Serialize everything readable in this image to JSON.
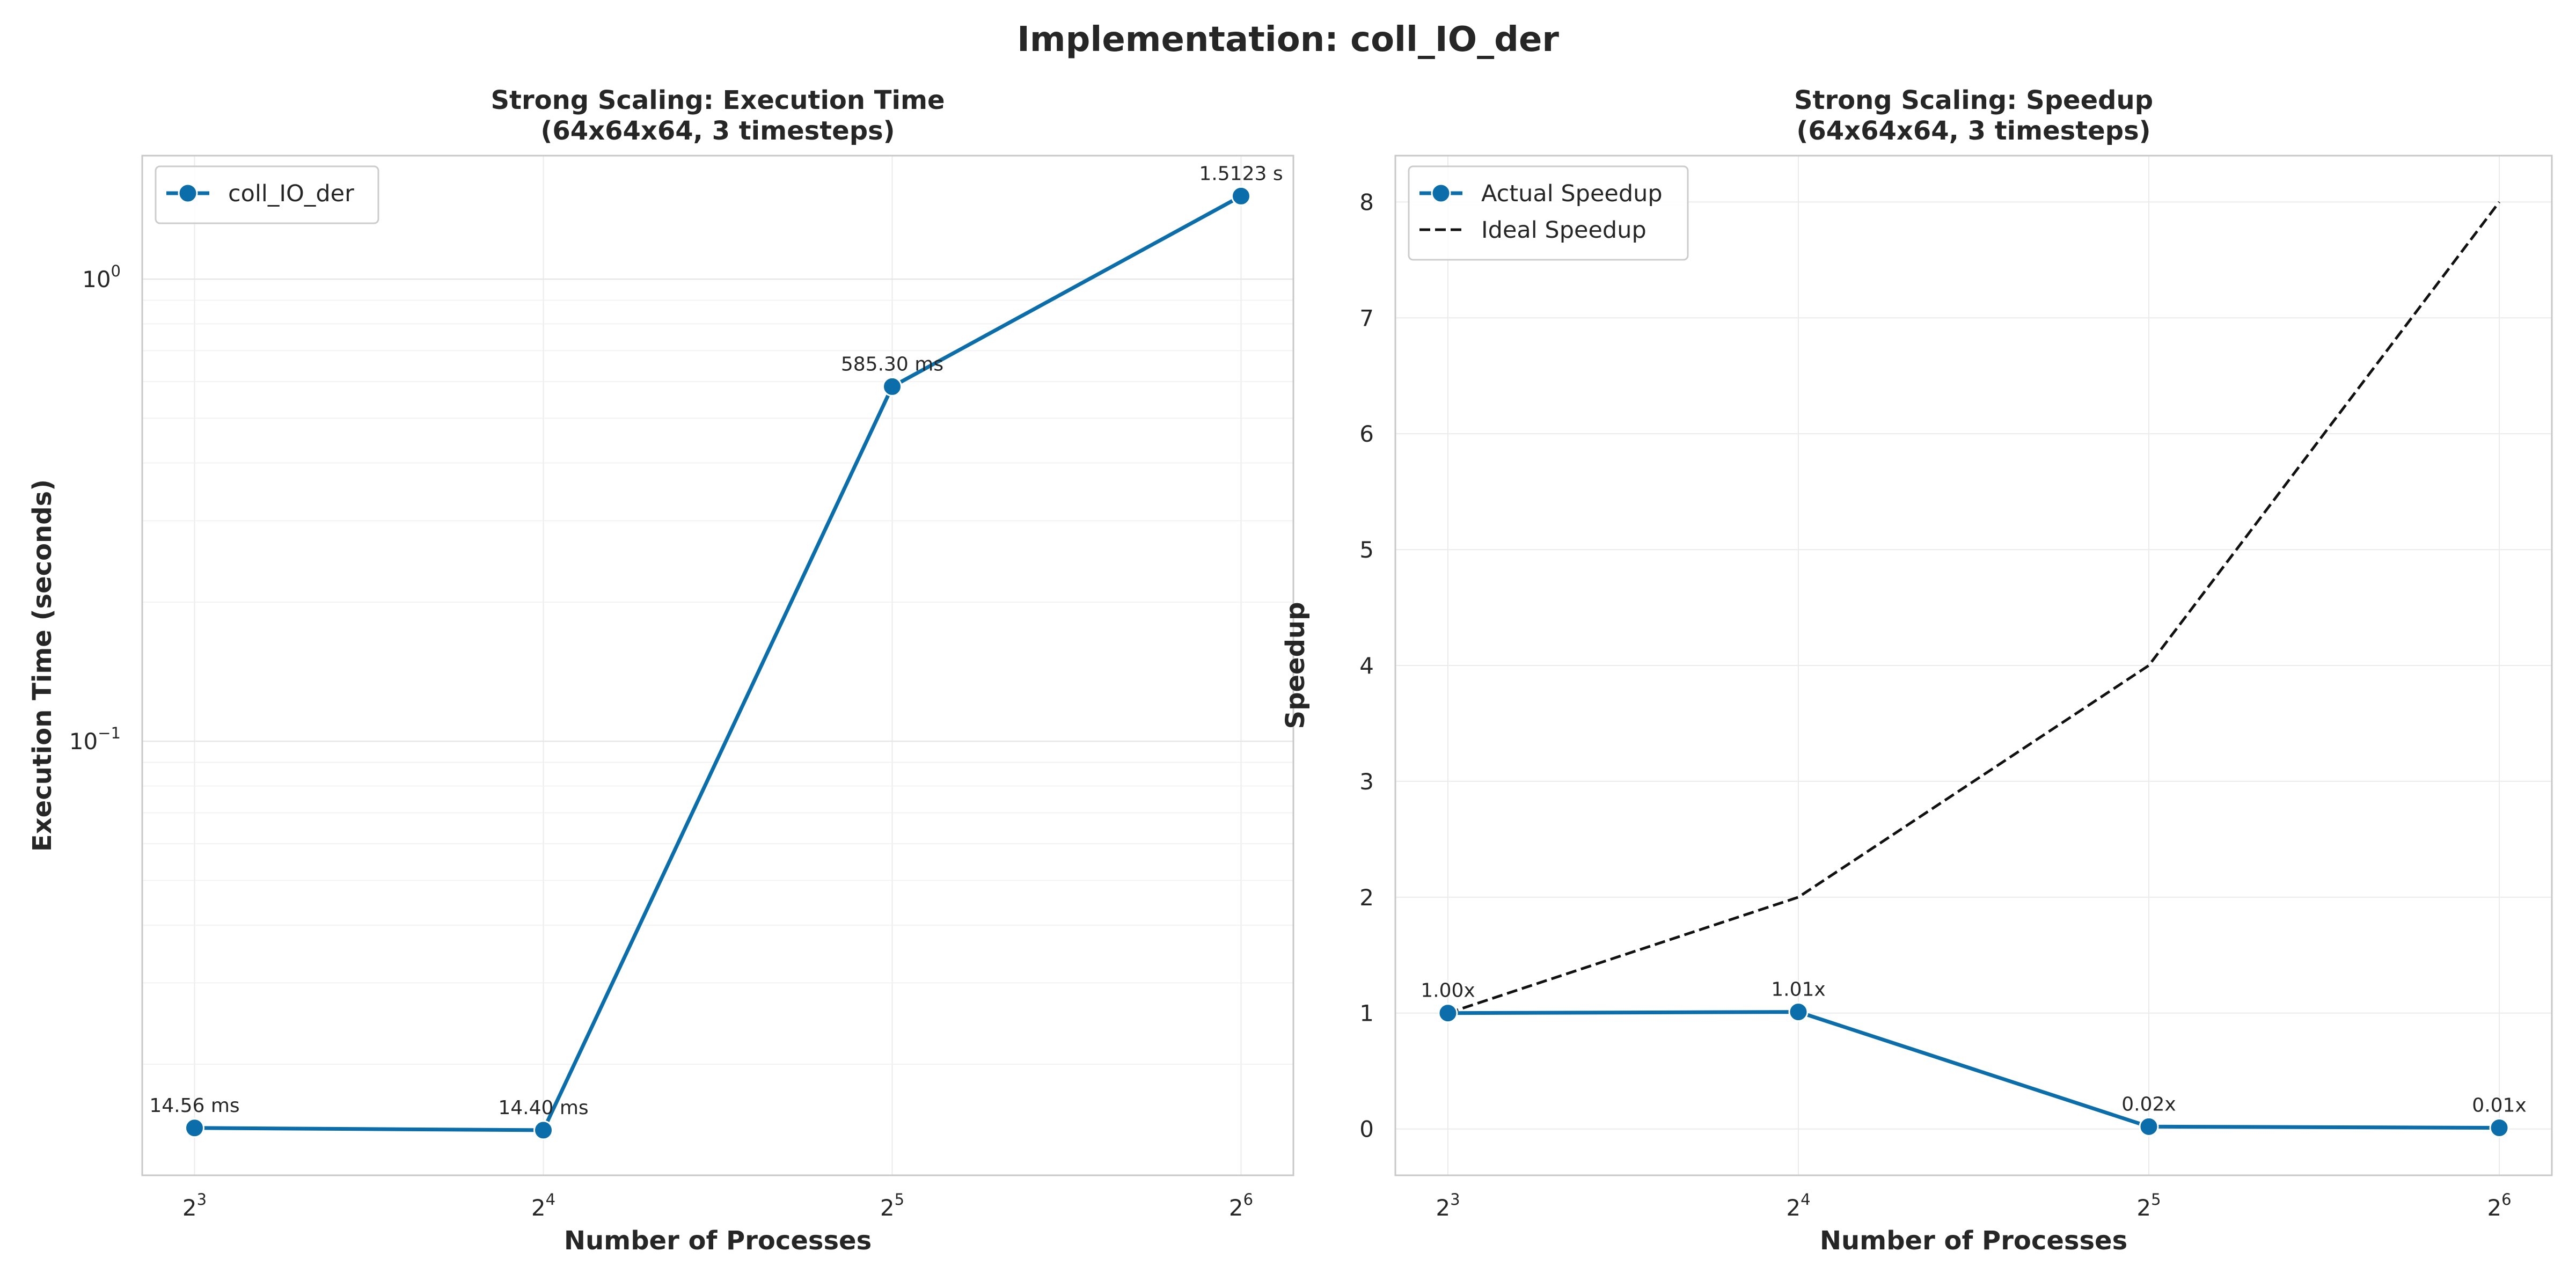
{
  "suptitle": "Implementation: coll_IO_der",
  "chart_data": [
    {
      "type": "line",
      "title_line1": "Strong Scaling: Execution Time",
      "title_line2": "(64x64x64, 3 timesteps)",
      "xlabel": "Number of Processes",
      "ylabel": "Execution Time (seconds)",
      "xscale": "log2",
      "yscale": "log10",
      "x": [
        8,
        16,
        32,
        64
      ],
      "x_ticks": [
        {
          "base": "2",
          "exp": "3"
        },
        {
          "base": "2",
          "exp": "4"
        },
        {
          "base": "2",
          "exp": "5"
        },
        {
          "base": "2",
          "exp": "6"
        }
      ],
      "y_ticks": [
        {
          "value": 0.1,
          "base": "10",
          "exp": "−1"
        },
        {
          "value": 1,
          "base": "10",
          "exp": "0"
        }
      ],
      "ylim": [
        0.0115,
        1.85
      ],
      "grid": true,
      "legend": "upper left",
      "series": [
        {
          "name": "coll_IO_der",
          "color": "#0b6eab",
          "style": "solid-marker",
          "values": [
            0.01456,
            0.0144,
            0.5853,
            1.5123
          ],
          "labels": [
            "14.56 ms",
            "14.40 ms",
            "585.30 ms",
            "1.5123 s"
          ]
        }
      ]
    },
    {
      "type": "line",
      "title_line1": "Strong Scaling: Speedup",
      "title_line2": "(64x64x64, 3 timesteps)",
      "xlabel": "Number of Processes",
      "ylabel": "Speedup",
      "xscale": "log2",
      "x": [
        8,
        16,
        32,
        64
      ],
      "x_ticks": [
        {
          "base": "2",
          "exp": "3"
        },
        {
          "base": "2",
          "exp": "4"
        },
        {
          "base": "2",
          "exp": "5"
        },
        {
          "base": "2",
          "exp": "6"
        }
      ],
      "y_ticks": [
        "0",
        "1",
        "2",
        "3",
        "4",
        "5",
        "6",
        "7",
        "8"
      ],
      "ylim": [
        -0.4,
        8.4
      ],
      "grid": true,
      "legend": "upper left",
      "series": [
        {
          "name": "Actual Speedup",
          "color": "#0b6eab",
          "style": "solid-marker",
          "values": [
            1.0,
            1.01,
            0.02,
            0.01
          ],
          "labels": [
            "1.00x",
            "1.01x",
            "0.02x",
            "0.01x"
          ]
        },
        {
          "name": "Ideal Speedup",
          "color": "#111111",
          "style": "dashed",
          "values": [
            1,
            2,
            4,
            8
          ]
        }
      ]
    }
  ]
}
